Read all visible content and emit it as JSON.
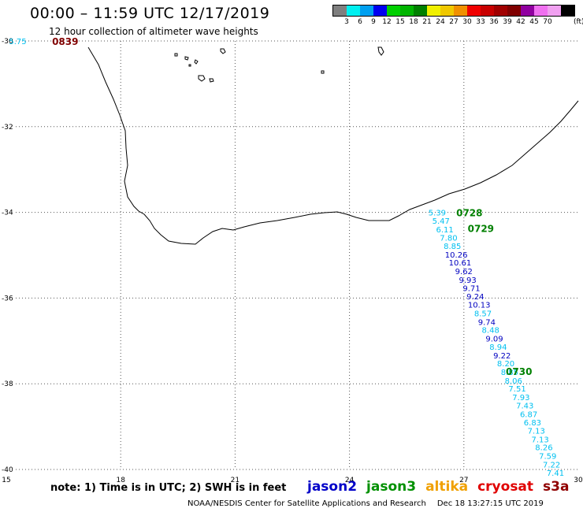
{
  "header": {
    "title": "00:00 – 11:59 UTC 12/17/2019",
    "subtitle": "12 hour collection of altimeter wave heights"
  },
  "legend": {
    "colors": [
      "#7f7f7f",
      "#00f0f0",
      "#00a0f0",
      "#0000f0",
      "#00d000",
      "#00b400",
      "#008000",
      "#f0f000",
      "#f0c800",
      "#f09000",
      "#f00000",
      "#c80000",
      "#a00000",
      "#800000",
      "#9000a0",
      "#f070f0",
      "#f0a0f0",
      "#000000"
    ],
    "ticks": [
      "3",
      "6",
      "9",
      "12",
      "15",
      "18",
      "21",
      "24",
      "27",
      "30",
      "33",
      "36",
      "39",
      "42",
      "45",
      "70"
    ],
    "unit": "(ft)"
  },
  "map": {
    "lon_ticks": [
      "15",
      "18",
      "21",
      "24",
      "27",
      "30"
    ],
    "lat_ticks": [
      "-30",
      "-32",
      "-34",
      "-36",
      "-38",
      "-40"
    ],
    "lon_range": [
      15,
      30
    ],
    "lat_range": [
      -30,
      -40
    ],
    "passes": [
      {
        "label": "0839",
        "color": "#800000",
        "lon": 16.2,
        "lat": -30.0
      },
      {
        "label": "0728",
        "color": "#008000",
        "lon": 26.8,
        "lat": -34.0
      },
      {
        "label": "0729",
        "color": "#008000",
        "lon": 27.1,
        "lat": -34.37
      },
      {
        "label": "0730",
        "color": "#008000",
        "lon": 28.1,
        "lat": -37.7
      }
    ],
    "readings": [
      {
        "v": "5.75",
        "lon": 15.3,
        "lat": -30.0,
        "c": "#00c0f0"
      },
      {
        "v": "5.39",
        "lon": 26.3,
        "lat": -34.0,
        "c": "#00c0f0"
      },
      {
        "v": "5.47",
        "lon": 26.4,
        "lat": -34.19,
        "c": "#00c0f0"
      },
      {
        "v": "6.11",
        "lon": 26.5,
        "lat": -34.39,
        "c": "#00c0f0"
      },
      {
        "v": "7.80",
        "lon": 26.6,
        "lat": -34.59,
        "c": "#00c0f0"
      },
      {
        "v": "8.85",
        "lon": 26.7,
        "lat": -34.78,
        "c": "#00c0f0"
      },
      {
        "v": "10.26",
        "lon": 26.8,
        "lat": -34.98,
        "c": "#0000c0"
      },
      {
        "v": "10.61",
        "lon": 26.9,
        "lat": -35.17,
        "c": "#0000c0"
      },
      {
        "v": "9.62",
        "lon": 27.0,
        "lat": -35.37,
        "c": "#0000c0"
      },
      {
        "v": "9.93",
        "lon": 27.1,
        "lat": -35.57,
        "c": "#0000c0"
      },
      {
        "v": "9.71",
        "lon": 27.2,
        "lat": -35.76,
        "c": "#0000c0"
      },
      {
        "v": "9.24",
        "lon": 27.3,
        "lat": -35.96,
        "c": "#0000c0"
      },
      {
        "v": "10.13",
        "lon": 27.4,
        "lat": -36.15,
        "c": "#0000c0"
      },
      {
        "v": "8.57",
        "lon": 27.5,
        "lat": -36.35,
        "c": "#00c0f0"
      },
      {
        "v": "9.74",
        "lon": 27.6,
        "lat": -36.55,
        "c": "#0000c0"
      },
      {
        "v": "8.48",
        "lon": 27.7,
        "lat": -36.74,
        "c": "#00c0f0"
      },
      {
        "v": "9.09",
        "lon": 27.8,
        "lat": -36.94,
        "c": "#0000c0"
      },
      {
        "v": "8.94",
        "lon": 27.9,
        "lat": -37.13,
        "c": "#00c0f0"
      },
      {
        "v": "9.22",
        "lon": 28.0,
        "lat": -37.33,
        "c": "#0000c0"
      },
      {
        "v": "8.20",
        "lon": 28.1,
        "lat": -37.52,
        "c": "#00c0f0"
      },
      {
        "v": "8.85",
        "lon": 28.2,
        "lat": -37.72,
        "c": "#00c0f0"
      },
      {
        "v": "8.06",
        "lon": 28.3,
        "lat": -37.92,
        "c": "#00c0f0"
      },
      {
        "v": "7.51",
        "lon": 28.4,
        "lat": -38.11,
        "c": "#00c0f0"
      },
      {
        "v": "7.93",
        "lon": 28.5,
        "lat": -38.31,
        "c": "#00c0f0"
      },
      {
        "v": "7.43",
        "lon": 28.6,
        "lat": -38.5,
        "c": "#00c0f0"
      },
      {
        "v": "6.87",
        "lon": 28.7,
        "lat": -38.7,
        "c": "#00c0f0"
      },
      {
        "v": "6.83",
        "lon": 28.8,
        "lat": -38.9,
        "c": "#00c0f0"
      },
      {
        "v": "7.13",
        "lon": 28.9,
        "lat": -39.09,
        "c": "#00c0f0"
      },
      {
        "v": "7.13",
        "lon": 29.0,
        "lat": -39.29,
        "c": "#00c0f0"
      },
      {
        "v": "8.26",
        "lon": 29.1,
        "lat": -39.48,
        "c": "#00c0f0"
      },
      {
        "v": "7.59",
        "lon": 29.2,
        "lat": -39.68,
        "c": "#00c0f0"
      },
      {
        "v": "7.22",
        "lon": 29.3,
        "lat": -39.88,
        "c": "#00c0f0"
      },
      {
        "v": "7.41",
        "lon": 29.4,
        "lat": -40.07,
        "c": "#00c0f0"
      }
    ]
  },
  "note": "note: 1) Time is in UTC; 2) SWH is in feet",
  "satellites": [
    {
      "name": "jason2",
      "color": "#0000c8"
    },
    {
      "name": "jason3",
      "color": "#009000"
    },
    {
      "name": "altika",
      "color": "#f0a000"
    },
    {
      "name": "cryosat",
      "color": "#e00000"
    },
    {
      "name": "s3a",
      "color": "#900000"
    }
  ],
  "footer": {
    "credit": "NOAA/NESDIS Center for Satellite Applications and Research",
    "timestamp": "Dec 18 13:27:15 UTC 2019"
  }
}
